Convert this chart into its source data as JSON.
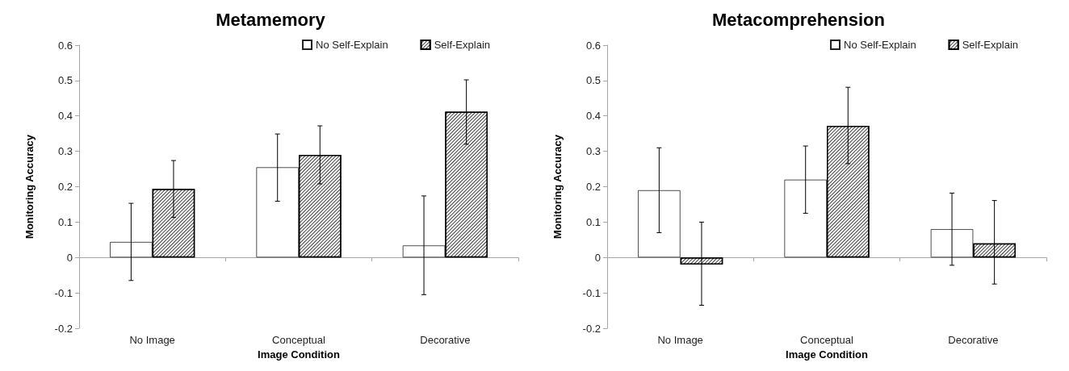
{
  "chart_data": [
    {
      "type": "bar",
      "title": "Metamemory",
      "xlabel": "Image Condition",
      "ylabel": "Monitoring Accuracy",
      "categories": [
        "No Image",
        "Conceptual",
        "Decorative"
      ],
      "series": [
        {
          "name": "No Self-Explain",
          "color": "#ffffff",
          "values": [
            0.044,
            0.255,
            0.034
          ],
          "errors": [
            [
              -0.065,
              0.153
            ],
            [
              0.159,
              0.349
            ],
            [
              -0.105,
              0.174
            ]
          ]
        },
        {
          "name": "Self-Explain",
          "color": "#404040",
          "values": [
            0.194,
            0.29,
            0.412
          ],
          "errors": [
            [
              0.113,
              0.274
            ],
            [
              0.208,
              0.372
            ],
            [
              0.32,
              0.502
            ]
          ]
        }
      ],
      "ylim": [
        -0.2,
        0.6
      ],
      "yticks": [
        -0.2,
        -0.1,
        0,
        0.1,
        0.2,
        0.3,
        0.4,
        0.5,
        0.6
      ],
      "legend": "top right"
    },
    {
      "type": "bar",
      "title": "Metacomprehension",
      "xlabel": "Image Condition",
      "ylabel": "Monitoring Accuracy",
      "categories": [
        "No Image",
        "Conceptual",
        "Decorative"
      ],
      "series": [
        {
          "name": "No Self-Explain",
          "color": "#ffffff",
          "values": [
            0.19,
            0.22,
            0.08
          ],
          "errors": [
            [
              0.07,
              0.31
            ],
            [
              0.125,
              0.315
            ],
            [
              -0.022,
              0.182
            ]
          ]
        },
        {
          "name": "Self-Explain",
          "color": "#404040",
          "values": [
            -0.02,
            0.372,
            0.04
          ],
          "errors": [
            [
              -0.135,
              0.1
            ],
            [
              0.265,
              0.481
            ],
            [
              -0.075,
              0.161
            ]
          ]
        }
      ],
      "ylim": [
        -0.2,
        0.6
      ],
      "yticks": [
        -0.2,
        -0.1,
        0,
        0.1,
        0.2,
        0.3,
        0.4,
        0.5,
        0.6
      ],
      "legend": "top right"
    }
  ]
}
